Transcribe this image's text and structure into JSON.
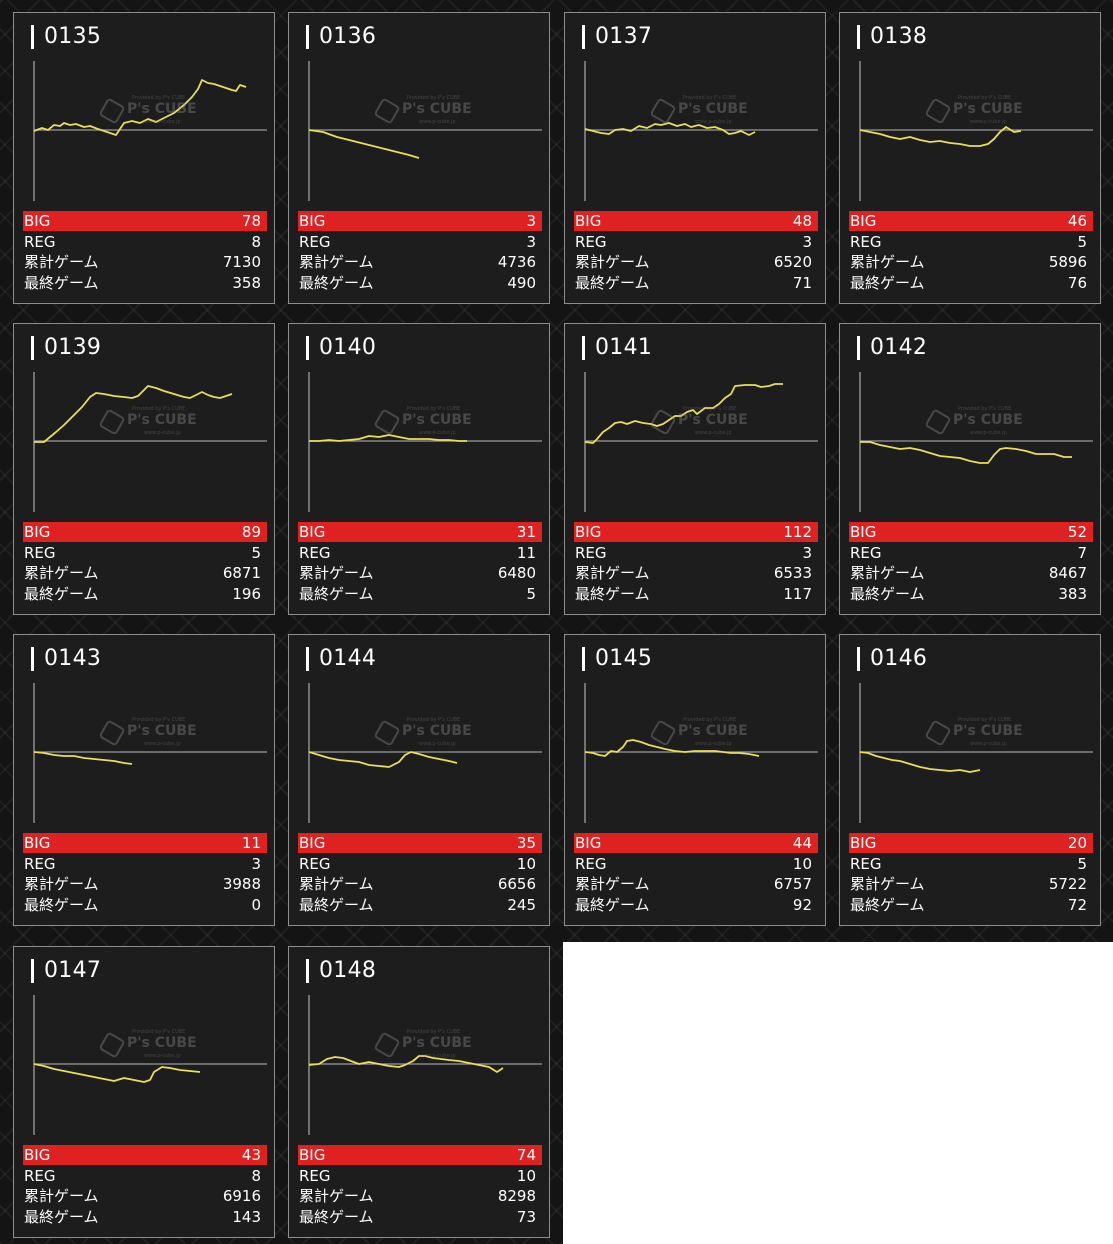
{
  "labels": {
    "big": "BIG",
    "reg": "REG",
    "total_games": "累計ゲーム",
    "last_games": "最終ゲーム"
  },
  "watermark": {
    "brand": "P's CUBE",
    "top_text": "Provided by P's CUBE",
    "bottom_text": "www.p-cube.jp"
  },
  "colors": {
    "big_bar": "#e02121",
    "graph_line": "#e8de5a",
    "baseline": "#9a9a9a",
    "card_bg": "#1d1d1d"
  },
  "cards": [
    {
      "id": "0135",
      "big": "78",
      "reg": "8",
      "total_games": "7130",
      "last_games": "358"
    },
    {
      "id": "0136",
      "big": "3",
      "reg": "3",
      "total_games": "4736",
      "last_games": "490"
    },
    {
      "id": "0137",
      "big": "48",
      "reg": "3",
      "total_games": "6520",
      "last_games": "71"
    },
    {
      "id": "0138",
      "big": "46",
      "reg": "5",
      "total_games": "5896",
      "last_games": "76"
    },
    {
      "id": "0139",
      "big": "89",
      "reg": "5",
      "total_games": "6871",
      "last_games": "196"
    },
    {
      "id": "0140",
      "big": "31",
      "reg": "11",
      "total_games": "6480",
      "last_games": "5"
    },
    {
      "id": "0141",
      "big": "112",
      "reg": "3",
      "total_games": "6533",
      "last_games": "117"
    },
    {
      "id": "0142",
      "big": "52",
      "reg": "7",
      "total_games": "8467",
      "last_games": "383"
    },
    {
      "id": "0143",
      "big": "11",
      "reg": "3",
      "total_games": "3988",
      "last_games": "0"
    },
    {
      "id": "0144",
      "big": "35",
      "reg": "10",
      "total_games": "6656",
      "last_games": "245"
    },
    {
      "id": "0145",
      "big": "44",
      "reg": "10",
      "total_games": "6757",
      "last_games": "92"
    },
    {
      "id": "0146",
      "big": "20",
      "reg": "5",
      "total_games": "5722",
      "last_games": "72"
    },
    {
      "id": "0147",
      "big": "43",
      "reg": "8",
      "total_games": "6916",
      "last_games": "143"
    },
    {
      "id": "0148",
      "big": "74",
      "reg": "10",
      "total_games": "8298",
      "last_games": "73"
    }
  ]
}
